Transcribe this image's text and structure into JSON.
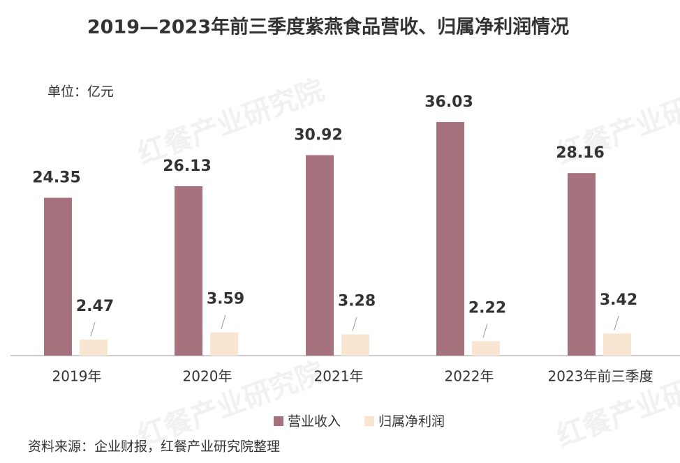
{
  "chart_data": {
    "type": "bar",
    "title": "2019—2023年前三季度紫燕食品营收、归属净利润情况",
    "unit_label": "单位：亿元",
    "categories": [
      "2019年",
      "2020年",
      "2021年",
      "2022年",
      "2023年前三季度"
    ],
    "series": [
      {
        "name": "营业收入",
        "color": "#a5727d",
        "values": [
          24.35,
          26.13,
          30.92,
          36.03,
          28.16
        ]
      },
      {
        "name": "归属净利润",
        "color": "#f8e6d3",
        "values": [
          2.47,
          3.59,
          3.28,
          2.22,
          3.42
        ]
      }
    ],
    "source": "资料来源：企业财报，红餐产业研究院整理",
    "watermark": "红餐产业研究院"
  }
}
